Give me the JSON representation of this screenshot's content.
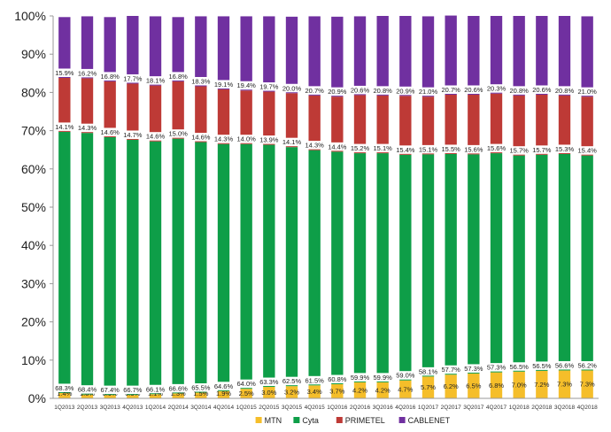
{
  "chart_data": {
    "type": "bar",
    "stacked": true,
    "percent_stacked": true,
    "title": "",
    "xlabel": "",
    "ylabel": "",
    "ylim": [
      0,
      100
    ],
    "y_ticks": [
      "0%",
      "10%",
      "20%",
      "30%",
      "40%",
      "50%",
      "60%",
      "70%",
      "80%",
      "90%",
      "100%"
    ],
    "grid": false,
    "legend_position": "bottom",
    "categories": [
      "1Q2013",
      "2Q2013",
      "3Q2013",
      "4Q2013",
      "1Q2014",
      "2Q2014",
      "3Q2014",
      "4Q2014",
      "1Q2015",
      "2Q2015",
      "3Q2015",
      "4Q2015",
      "1Q2016",
      "2Q2016",
      "3Q2016",
      "4Q2016",
      "1Q2017",
      "2Q2017",
      "3Q2017",
      "4Q2017",
      "1Q2018",
      "2Q2018",
      "3Q2018",
      "4Q2018"
    ],
    "series": [
      {
        "name": "MTN",
        "color": "#F5BE2A",
        "values": [
          1.4,
          1.0,
          0.9,
          0.9,
          1.1,
          1.3,
          1.5,
          1.9,
          2.5,
          3.0,
          3.2,
          3.4,
          3.7,
          4.2,
          4.2,
          4.7,
          5.7,
          6.2,
          6.5,
          6.8,
          7.0,
          7.2,
          7.3,
          7.3
        ],
        "labels": [
          "1.4%",
          "1.0%",
          "0.9%",
          "0.9%",
          "1.1%",
          "1.3%",
          "1.5%",
          "1.9%",
          "2.5%",
          "3.0%",
          "3.2%",
          "3.4%",
          "3.7%",
          "4.2%",
          "4.2%",
          "4.7%",
          "5.7%",
          "6.2%",
          "6.5%",
          "6.8%",
          "7.0%",
          "7.2%",
          "7.3%",
          "7.3%"
        ]
      },
      {
        "name": "Cyta",
        "color": "#0E9E48",
        "values": [
          68.3,
          68.4,
          67.4,
          66.7,
          66.1,
          66.6,
          65.5,
          64.6,
          64.0,
          63.3,
          62.5,
          61.5,
          60.8,
          59.9,
          59.9,
          59.0,
          58.1,
          57.7,
          57.3,
          57.3,
          56.5,
          56.5,
          56.6,
          56.2
        ],
        "labels": [
          "68.3%",
          "68.4%",
          "67.4%",
          "66.7%",
          "66.1%",
          "66.6%",
          "65.5%",
          "64.6%",
          "64.0%",
          "63.3%",
          "62.5%",
          "61.5%",
          "60.8%",
          "59.9%",
          "59.9%",
          "59.0%",
          "58.1%",
          "57.7%",
          "57.3%",
          "57.3%",
          "56.5%",
          "56.5%",
          "56.6%",
          "56.2%"
        ]
      },
      {
        "name": "PRIMETEL",
        "color": "#BE3A36",
        "values": [
          14.1,
          14.3,
          14.6,
          14.7,
          14.6,
          15.0,
          14.6,
          14.3,
          14.0,
          13.9,
          14.1,
          14.3,
          14.4,
          15.2,
          15.1,
          15.4,
          15.1,
          15.5,
          15.6,
          15.6,
          15.7,
          15.7,
          15.3,
          15.4
        ],
        "labels": [
          "14.1%",
          "14.3%",
          "14.6%",
          "14.7%",
          "14.6%",
          "15.0%",
          "14.6%",
          "14.3%",
          "14.0%",
          "13.9%",
          "14.1%",
          "14.3%",
          "14.4%",
          "15.2%",
          "15.1%",
          "15.4%",
          "15.1%",
          "15.5%",
          "15.6%",
          "15.6%",
          "15.7%",
          "15.7%",
          "15.3%",
          "15.4%"
        ]
      },
      {
        "name": "CABLENET",
        "color": "#7030A0",
        "values": [
          15.9,
          16.2,
          16.8,
          17.7,
          18.1,
          16.8,
          18.3,
          19.1,
          19.4,
          19.7,
          20.0,
          20.7,
          20.9,
          20.6,
          20.8,
          20.9,
          21.0,
          20.7,
          20.6,
          20.3,
          20.8,
          20.6,
          20.8,
          21.0
        ],
        "labels": [
          "15.9%",
          "16.2%",
          "16.8%",
          "17.7%",
          "18.1%",
          "16.8%",
          "18.3%",
          "19.1%",
          "19.4%",
          "19.7%",
          "20.0%",
          "20.7%",
          "20.9%",
          "20.6%",
          "20.8%",
          "20.9%",
          "21.0%",
          "20.7%",
          "20.6%",
          "20.3%",
          "20.8%",
          "20.6%",
          "20.8%",
          "21.0%"
        ]
      }
    ]
  }
}
